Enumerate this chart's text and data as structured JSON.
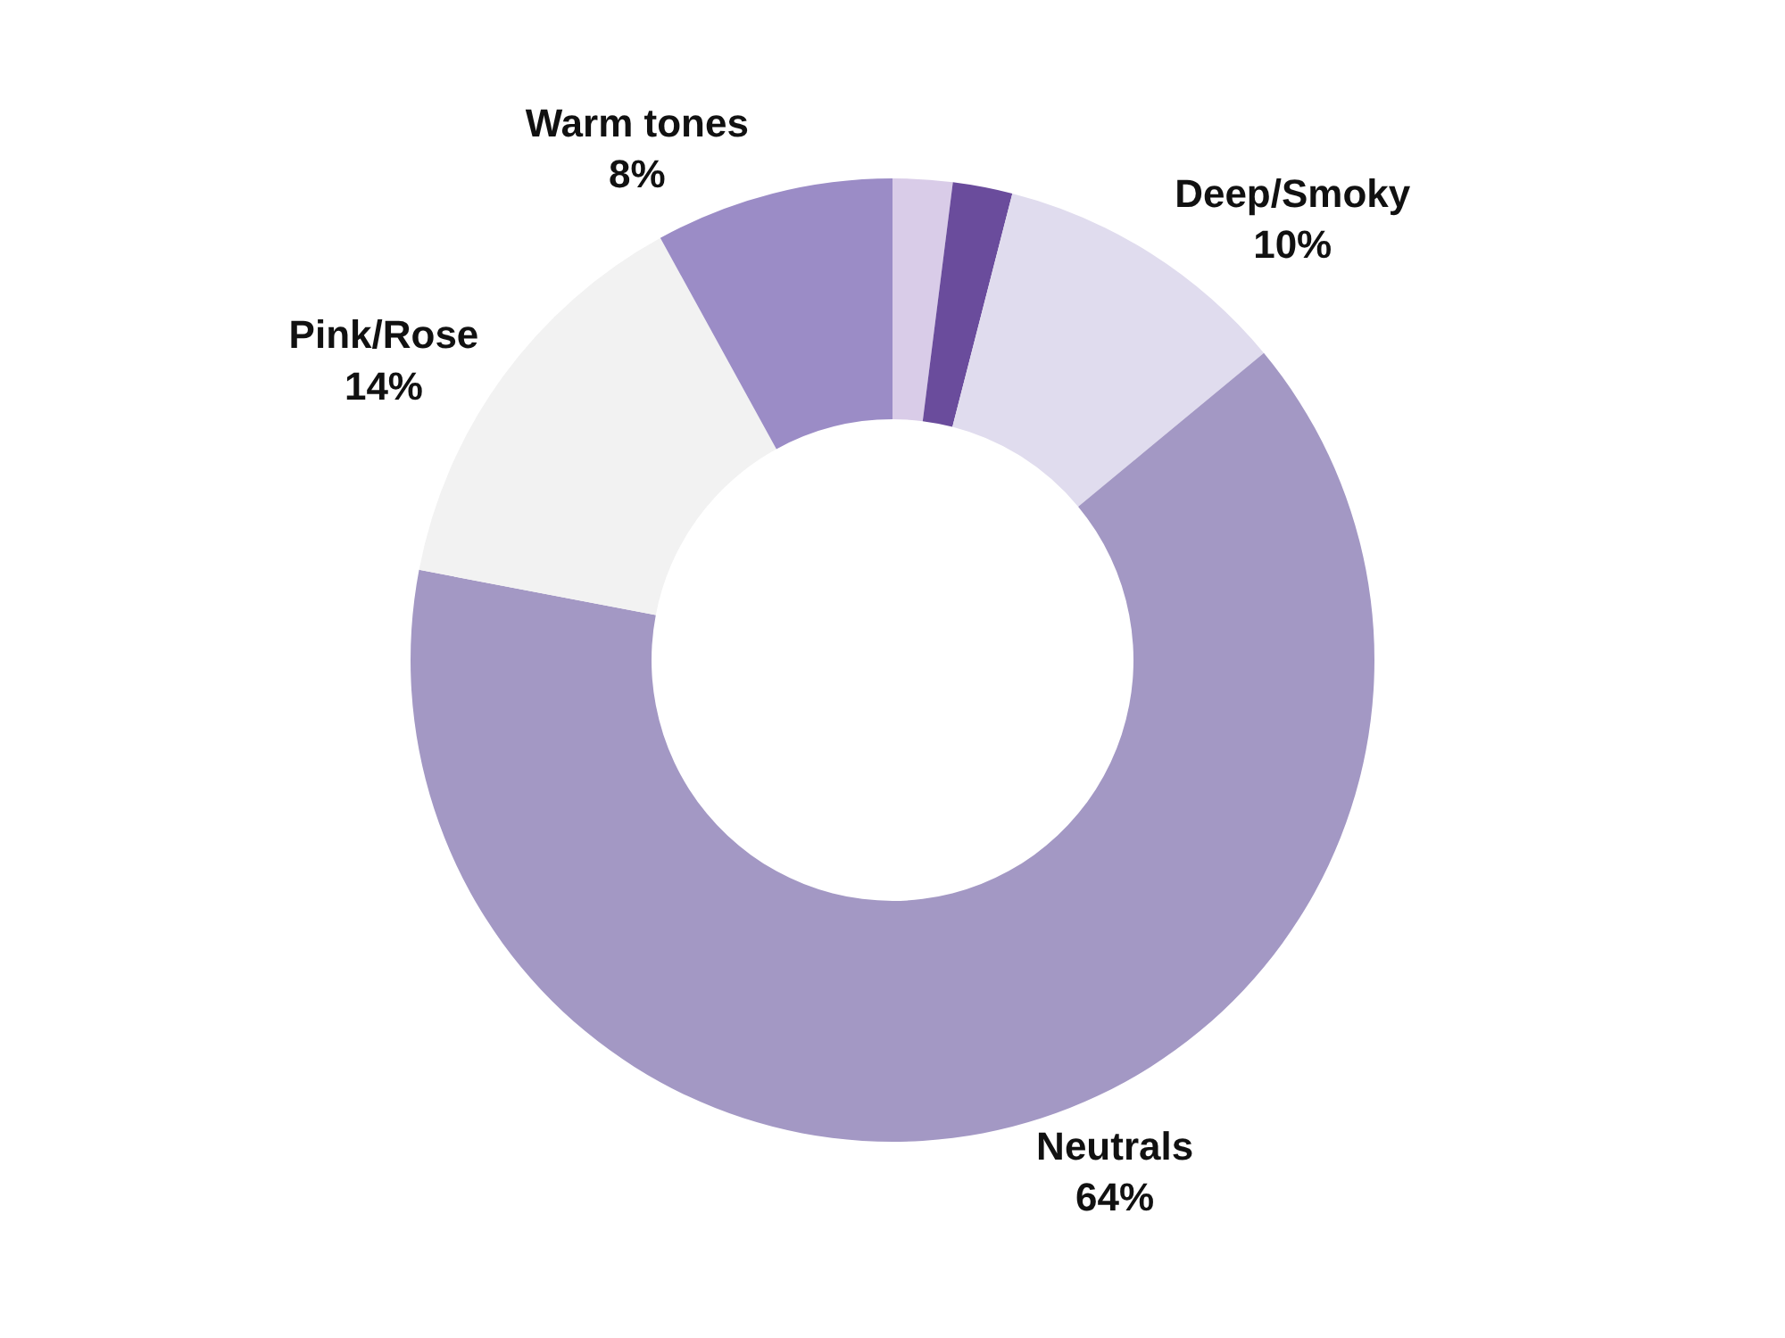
{
  "chart_data": {
    "type": "donut",
    "categories": [
      null,
      null,
      "Deep/Smoky",
      "Neutrals",
      "Pink/Rose",
      "Warm tones"
    ],
    "values": [
      2,
      2,
      10,
      64,
      14,
      8
    ],
    "value_labels": [
      null,
      null,
      "10%",
      "64%",
      "14%",
      "8%"
    ],
    "colors": [
      "#d9cce8",
      "#6a4c9c",
      "#e0dcee",
      "#a398c4",
      "#f2f2f2",
      "#9b8cc6"
    ],
    "legend": false
  }
}
